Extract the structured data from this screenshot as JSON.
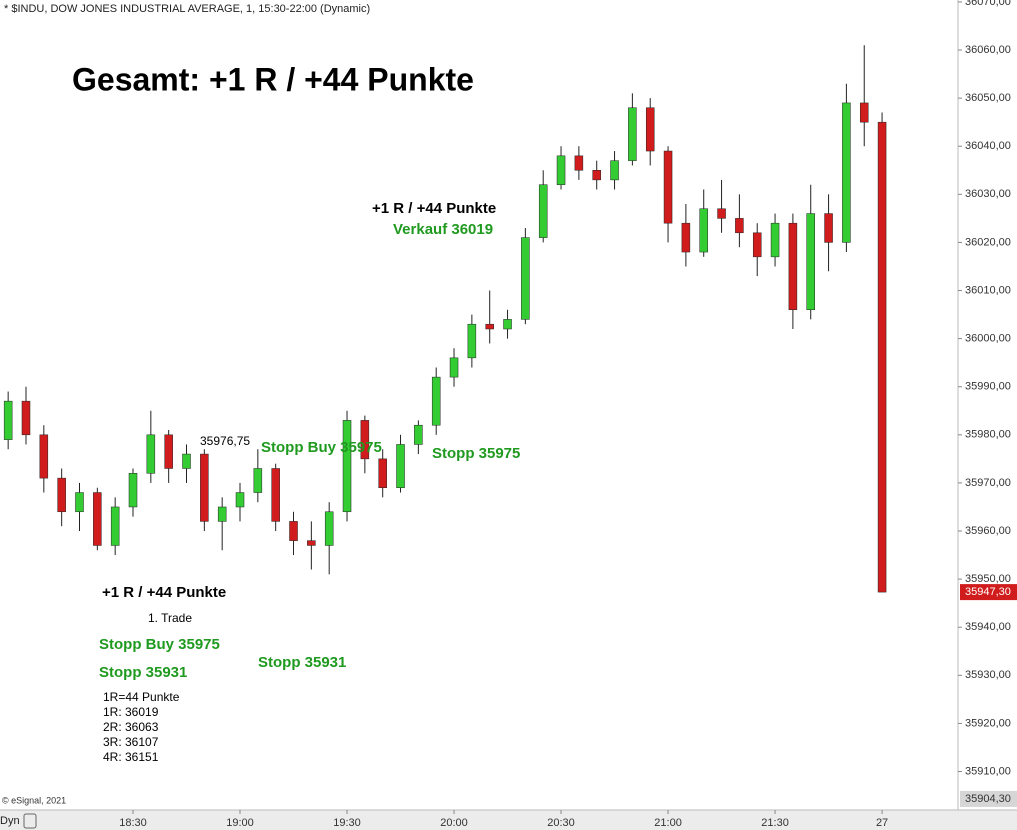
{
  "chart_data": {
    "type": "candlestick",
    "title": "* $INDU, DOW JONES INDUSTRIAL AVERAGE, 1, 15:30-22:00 (Dynamic)",
    "up_color": "#33cc33",
    "down_color": "#d01c1c",
    "x": [
      "17:55",
      "18:00",
      "18:05",
      "18:10",
      "18:15",
      "18:20",
      "18:25",
      "18:30",
      "18:35",
      "18:40",
      "18:45",
      "18:50",
      "18:55",
      "19:00",
      "19:05",
      "19:10",
      "19:15",
      "19:20",
      "19:25",
      "19:30",
      "19:35",
      "19:40",
      "19:45",
      "19:50",
      "19:55",
      "20:00",
      "20:05",
      "20:10",
      "20:15",
      "20:20",
      "20:25",
      "20:30",
      "20:35",
      "20:40",
      "20:45",
      "20:50",
      "20:55",
      "21:00",
      "21:05",
      "21:10",
      "21:15",
      "21:20",
      "21:25",
      "21:30",
      "21:35",
      "21:40",
      "21:45",
      "21:50",
      "21:55",
      "22:00"
    ],
    "open": [
      35979,
      35987,
      35980,
      35971,
      35964,
      35968,
      35957,
      35965,
      35972,
      35980,
      35973,
      35976,
      35962,
      35965,
      35968,
      35973,
      35962,
      35958,
      35957,
      35964,
      35983,
      35975,
      35969,
      35978,
      35982,
      35992,
      35996,
      36003,
      36002,
      36004,
      36021,
      36032,
      36038,
      36035,
      36033,
      36037,
      36048,
      36039,
      36024,
      36018,
      36027,
      36025,
      36022,
      36017,
      36024,
      36006,
      36026,
      36020,
      36049,
      36045
    ],
    "high": [
      35989,
      35990,
      35982,
      35973,
      35970,
      35969,
      35967,
      35973,
      35985,
      35981,
      35978,
      35977,
      35967,
      35970,
      35977,
      35974,
      35964,
      35962,
      35966,
      35985,
      35984,
      35977,
      35980,
      35983,
      35994,
      35998,
      36005,
      36010,
      36006,
      36023,
      36035,
      36040,
      36040,
      36037,
      36039,
      36051,
      36050,
      36040,
      36028,
      36031,
      36033,
      36030,
      36024,
      36026,
      36026,
      36032,
      36030,
      36053,
      36061,
      36047
    ],
    "low": [
      35977,
      35978,
      35968,
      35961,
      35960,
      35956,
      35955,
      35963,
      35970,
      35970,
      35970,
      35960,
      35956,
      35962,
      35966,
      35960,
      35955,
      35952,
      35951,
      35962,
      35972,
      35967,
      35968,
      35976,
      35980,
      35990,
      35994,
      35999,
      36000,
      36003,
      36020,
      36031,
      36033,
      36031,
      36031,
      36036,
      36036,
      36020,
      36015,
      36017,
      36022,
      36019,
      36013,
      36015,
      36002,
      36004,
      36014,
      36018,
      36040,
      35947.3
    ],
    "close": [
      35987,
      35980,
      35971,
      35964,
      35968,
      35957,
      35965,
      35972,
      35980,
      35973,
      35976,
      35962,
      35965,
      35968,
      35973,
      35962,
      35958,
      35957,
      35964,
      35983,
      35975,
      35969,
      35978,
      35982,
      35992,
      35996,
      36003,
      36002,
      36004,
      36021,
      36032,
      36038,
      36035,
      36033,
      36037,
      36048,
      36039,
      36024,
      36018,
      36027,
      36025,
      36022,
      36017,
      36024,
      36006,
      36026,
      36020,
      36049,
      36045,
      35947.3
    ],
    "xticks": [
      "18:30",
      "19:00",
      "19:30",
      "20:00",
      "20:30",
      "21:00",
      "21:30",
      {
        "value": "22:00",
        "label": "27"
      }
    ],
    "ylim": [
      35902,
      36070.4
    ],
    "yticks": [
      {
        "value": 35910,
        "label": "35910,00"
      },
      {
        "value": 35920,
        "label": "35920,00"
      },
      {
        "value": 35930,
        "label": "35930,00"
      },
      {
        "value": 35940,
        "label": "35940,00"
      },
      {
        "value": 35950,
        "label": "35950,00"
      },
      {
        "value": 35960,
        "label": "35960,00"
      },
      {
        "value": 35970,
        "label": "35970,00"
      },
      {
        "value": 35980,
        "label": "35980,00"
      },
      {
        "value": 35990,
        "label": "35990,00"
      },
      {
        "value": 36000,
        "label": "36000,00"
      },
      {
        "value": 36010,
        "label": "36010,00"
      },
      {
        "value": 36020,
        "label": "36020,00"
      },
      {
        "value": 36030,
        "label": "36030,00"
      },
      {
        "value": 36040,
        "label": "36040,00"
      },
      {
        "value": 36050,
        "label": "36050,00"
      },
      {
        "value": 36060,
        "label": "36060,00"
      },
      {
        "value": 36070,
        "label": "36070,00"
      }
    ],
    "last_price": {
      "value": 35947.3,
      "label": "35947,30"
    },
    "bottom_price": {
      "value": 35904.3,
      "label": "35904,30"
    },
    "annotations": [
      {
        "text": "Gesamt: +1 R / +44 Punkte",
        "color": "#000000"
      },
      {
        "text": "+1 R / +44 Punkte",
        "color": "#000000"
      },
      {
        "text": "Verkauf 36019",
        "color": "#1f9a1f"
      },
      {
        "text": "35976,75",
        "color": "#000000"
      },
      {
        "text": "Stopp Buy 35975",
        "color": "#1f9a1f"
      },
      {
        "text": "Stopp 35975",
        "color": "#1f9a1f"
      },
      {
        "text": "+1 R / +44 Punkte",
        "color": "#000000"
      },
      {
        "text": "1. Trade",
        "color": "#000000"
      },
      {
        "text": "Stopp Buy 35975",
        "color": "#1f9a1f"
      },
      {
        "text": "Stopp 35931",
        "color": "#1f9a1f"
      },
      {
        "text": "Stopp 35931",
        "color": "#1f9a1f"
      },
      {
        "text": "1R=44 Punkte",
        "color": "#000000"
      },
      {
        "text": "1R: 36019",
        "color": "#000000"
      },
      {
        "text": "2R: 36063",
        "color": "#000000"
      },
      {
        "text": "3R: 36107",
        "color": "#000000"
      },
      {
        "text": "4R: 36151",
        "color": "#000000"
      }
    ],
    "copyright": "© eSignal, 2021",
    "mode_label": "Dyn"
  }
}
